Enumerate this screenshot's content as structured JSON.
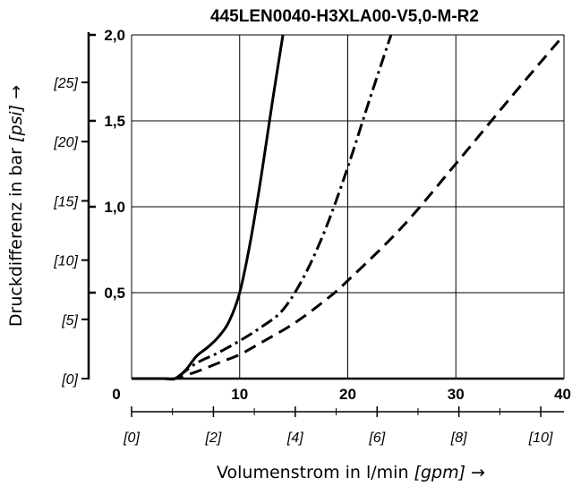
{
  "chart_data": {
    "type": "line",
    "title": "445LEN0040-H3XLA00-V5,0-M-R2",
    "xlabel": {
      "prefix": "Volumenstrom in l/min ",
      "unit": "[gpm]",
      "suffix": " →"
    },
    "ylabel": {
      "prefix": "Druckdifferenz in bar ",
      "unit": "[psi]",
      "suffix": " →"
    },
    "xlim": [
      0,
      40
    ],
    "ylim": [
      0,
      2.0
    ],
    "x_ticks": [
      {
        "value": 0,
        "label": "0"
      },
      {
        "value": 10,
        "label": "10"
      },
      {
        "value": 20,
        "label": "20"
      },
      {
        "value": 30,
        "label": "30"
      },
      {
        "value": 40,
        "label": "40"
      }
    ],
    "y_ticks": [
      {
        "value": 0.5,
        "label": "0,5"
      },
      {
        "value": 1.0,
        "label": "1,0"
      },
      {
        "value": 1.5,
        "label": "1,5"
      },
      {
        "value": 2.0,
        "label": "2,0"
      }
    ],
    "gpm_ticks": [
      {
        "value": 0,
        "label": "[0]"
      },
      {
        "value": 2,
        "label": "[2]"
      },
      {
        "value": 4,
        "label": "[4]"
      },
      {
        "value": 6,
        "label": "[6]"
      },
      {
        "value": 8,
        "label": "[8]"
      },
      {
        "value": 10,
        "label": "[10]"
      }
    ],
    "psi_ticks": [
      {
        "value": 0,
        "label": "[0]"
      },
      {
        "value": 5,
        "label": "[5]"
      },
      {
        "value": 10,
        "label": "[10]"
      },
      {
        "value": 15,
        "label": "[15]"
      },
      {
        "value": 20,
        "label": "[20]"
      },
      {
        "value": 25,
        "label": "[25]"
      }
    ],
    "grid": true,
    "series": [
      {
        "style": "solid",
        "x": [
          0,
          3,
          4,
          5,
          6,
          7,
          8,
          9,
          10,
          11,
          12,
          13,
          14
        ],
        "y": [
          0,
          0,
          0,
          0.05,
          0.13,
          0.18,
          0.24,
          0.33,
          0.5,
          0.8,
          1.18,
          1.6,
          2.0
        ]
      },
      {
        "style": "dashdot",
        "x": [
          0,
          3,
          4,
          6,
          8,
          10,
          12,
          14,
          16,
          18,
          20,
          22,
          24
        ],
        "y": [
          0,
          0,
          0,
          0.09,
          0.15,
          0.22,
          0.3,
          0.4,
          0.6,
          0.88,
          1.23,
          1.62,
          2.0
        ]
      },
      {
        "style": "dashed",
        "x": [
          0,
          3,
          4,
          6,
          8,
          10,
          12,
          15,
          18,
          20,
          25,
          30,
          35,
          40
        ],
        "y": [
          0,
          0,
          0,
          0.04,
          0.09,
          0.14,
          0.21,
          0.32,
          0.46,
          0.57,
          0.88,
          1.25,
          1.63,
          2.0
        ]
      }
    ]
  },
  "colors": {
    "line": "#000000",
    "grid": "#000000",
    "background": "#ffffff"
  }
}
